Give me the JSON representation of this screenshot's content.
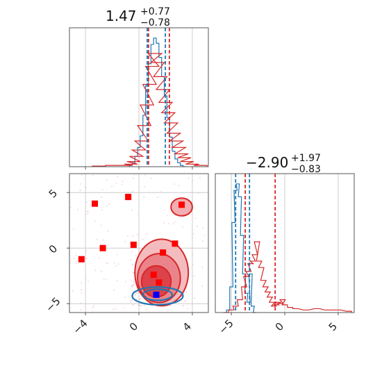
{
  "chart_data": {
    "type": "corner",
    "parameters": [
      {
        "title": {
          "median": "1.47",
          "plus": "+0.77",
          "minus": "−0.78"
        },
        "quantiles_blue": [
          0.62,
          1.98
        ],
        "quantiles_red": [
          0.72,
          2.28
        ]
      },
      {
        "title": {
          "median": "−2.90",
          "plus": "+1.97",
          "minus": "−0.83"
        },
        "quantiles_blue": [
          -4.6,
          -3.3
        ],
        "quantiles_red": [
          -3.7,
          -0.9
        ]
      }
    ],
    "panels": [
      {
        "name": "hist-x",
        "xlim": [
          -5.2,
          5.2
        ],
        "xticks": [
          -4,
          0,
          4
        ],
        "series": [
          {
            "color": "#1f77b4",
            "x": [
              -0.6,
              -0.4,
              -0.2,
              0.0,
              0.2,
              0.4,
              0.6,
              0.8,
              1.0,
              1.2,
              1.4,
              1.6,
              1.8,
              2.0,
              2.2,
              2.4,
              2.6,
              2.8,
              3.0,
              3.2,
              3.4
            ],
            "y": [
              0.01,
              0.03,
              0.08,
              0.15,
              0.24,
              0.4,
              0.63,
              0.8,
              0.95,
              1.0,
              0.96,
              0.85,
              0.7,
              0.55,
              0.38,
              0.23,
              0.12,
              0.06,
              0.03,
              0.01,
              0.0
            ]
          },
          {
            "color": "#d62728",
            "x": [
              -3.0,
              -2.0,
              -1.0,
              -0.6,
              -0.4,
              -0.2,
              0.0,
              0.2,
              0.4,
              0.6,
              0.8,
              1.0,
              1.2,
              1.4,
              1.6,
              1.8,
              2.0,
              2.2,
              2.4,
              2.6,
              2.8,
              3.0,
              3.2,
              3.4,
              3.6,
              4.0,
              4.6
            ],
            "y": [
              0.005,
              0.01,
              0.01,
              0.02,
              0.04,
              0.08,
              0.13,
              0.2,
              0.32,
              0.48,
              0.64,
              0.78,
              0.88,
              0.81,
              0.7,
              0.6,
              0.5,
              0.42,
              0.34,
              0.26,
              0.2,
              0.15,
              0.1,
              0.07,
              0.04,
              0.02,
              0.01
            ]
          }
        ]
      },
      {
        "name": "hist-y",
        "xlim": [
          -6.5,
          6.5
        ],
        "xticks": [
          -5,
          0,
          5
        ],
        "series": [
          {
            "color": "#1f77b4",
            "x": [
              -5.3,
              -5.0,
              -4.8,
              -4.6,
              -4.4,
              -4.2,
              -4.0,
              -3.8,
              -3.6,
              -3.4,
              -3.2,
              -3.0,
              -2.8
            ],
            "y": [
              0.02,
              0.2,
              0.7,
              0.95,
              1.0,
              0.9,
              0.6,
              0.3,
              0.15,
              0.08,
              0.3,
              0.05,
              0.0
            ]
          },
          {
            "color": "#d62728",
            "x": [
              -5.5,
              -5.0,
              -4.6,
              -4.2,
              -3.8,
              -3.6,
              -3.4,
              -3.2,
              -3.0,
              -2.8,
              -2.6,
              -2.4,
              -2.2,
              -2.0,
              -1.8,
              -1.6,
              -1.4,
              -1.2,
              -1.0,
              -0.8,
              -0.6,
              -0.4,
              -0.2,
              0.0,
              0.5,
              1.0,
              2.0,
              3.0,
              4.0,
              5.0,
              6.0
            ],
            "y": [
              0.0,
              0.02,
              0.05,
              0.1,
              0.2,
              0.28,
              0.32,
              0.38,
              0.4,
              0.45,
              0.55,
              0.4,
              0.35,
              0.25,
              0.2,
              0.16,
              0.12,
              0.08,
              0.05,
              0.06,
              0.08,
              0.07,
              0.1,
              0.06,
              0.04,
              0.03,
              0.02,
              0.03,
              0.02,
              0.02,
              0.01
            ]
          }
        ]
      },
      {
        "name": "joint",
        "xlim": [
          -5.2,
          5.2
        ],
        "ylim": [
          -5.8,
          6.7
        ],
        "xticks": [
          -4,
          0,
          4
        ],
        "yticks": [
          -5,
          0,
          5
        ],
        "red_contours": [
          {
            "level": "outer",
            "cx": 1.7,
            "cy": -2.2,
            "rx": 2.0,
            "ry": 3.0
          },
          {
            "level": "middle",
            "cx": 1.5,
            "cy": -2.7,
            "rx": 1.6,
            "ry": 2.2
          },
          {
            "level": "inner",
            "cx": 1.3,
            "cy": -3.0,
            "rx": 1.1,
            "ry": 1.4
          },
          {
            "level": "blob",
            "cx": 3.2,
            "cy": 3.7,
            "rx": 0.8,
            "ry": 0.8
          }
        ],
        "blue_contours": [
          {
            "level": "outer",
            "cx": 1.4,
            "cy": -4.3,
            "rx": 1.9,
            "ry": 0.8
          },
          {
            "level": "inner",
            "cx": 1.4,
            "cy": -4.2,
            "rx": 1.1,
            "ry": 0.5
          }
        ],
        "red_markers": [
          {
            "x": -3.3,
            "y": 4.0
          },
          {
            "x": -0.8,
            "y": 4.6
          },
          {
            "x": 3.2,
            "y": 3.9
          },
          {
            "x": -2.7,
            "y": 0.0
          },
          {
            "x": -4.3,
            "y": -1.0
          },
          {
            "x": -0.4,
            "y": 0.3
          },
          {
            "x": 1.8,
            "y": -0.4
          },
          {
            "x": 2.7,
            "y": 0.4
          },
          {
            "x": 1.1,
            "y": -2.4
          },
          {
            "x": 1.5,
            "y": -3.1
          }
        ],
        "blue_markers": [
          {
            "x": 1.3,
            "y": -4.2
          }
        ]
      }
    ]
  },
  "colors": {
    "blue": "#1f77b4",
    "red": "#d62728",
    "grid": "#cccccc",
    "axis": "#555555"
  }
}
